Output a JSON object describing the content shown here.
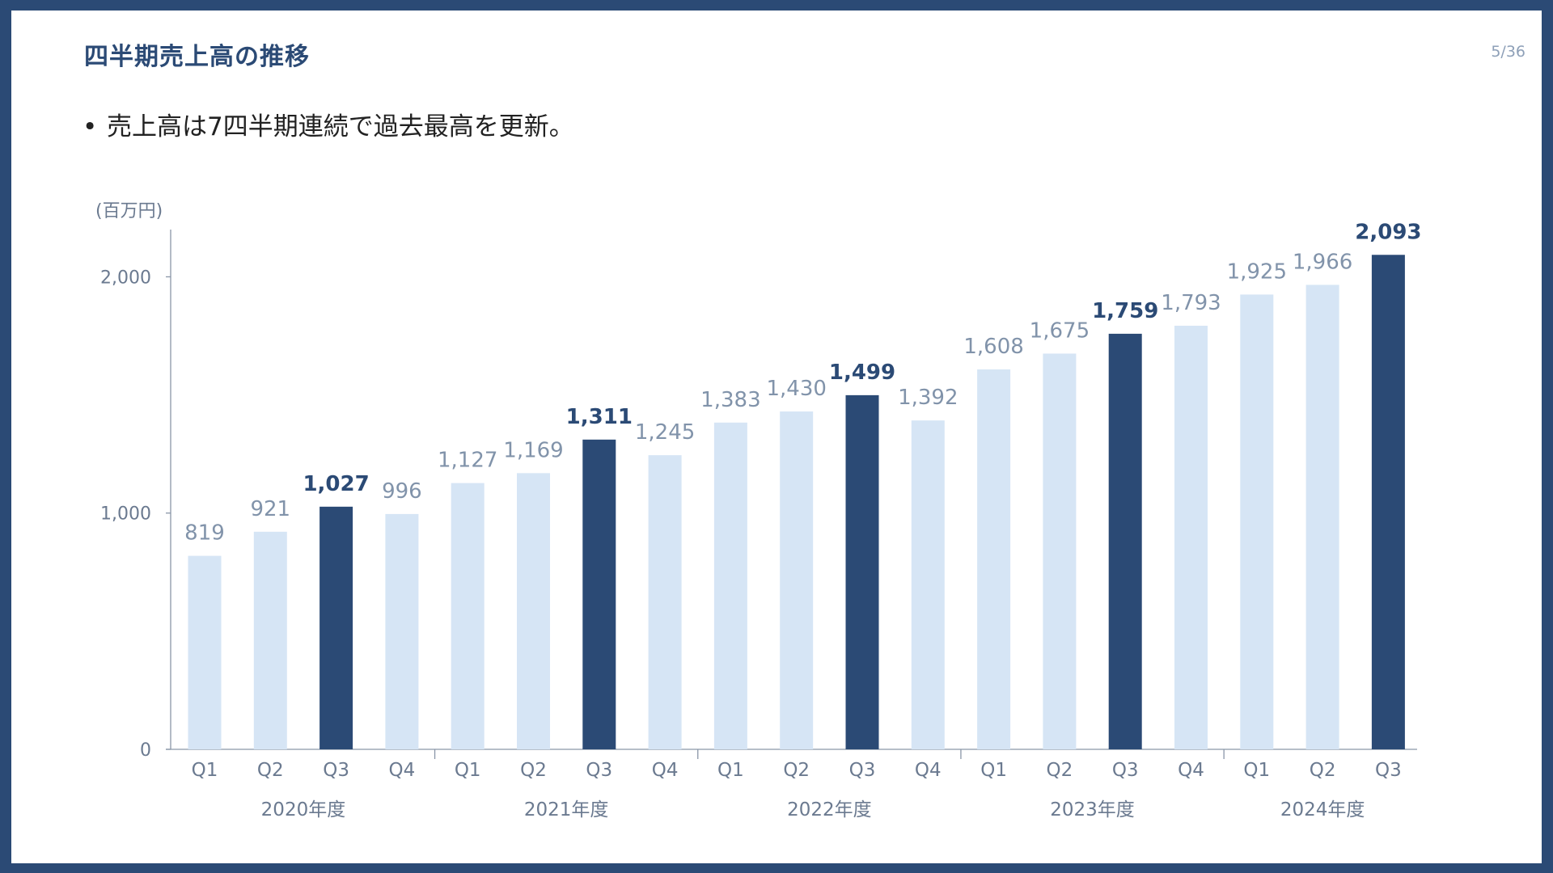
{
  "page": {
    "title": "四半期売上高の推移",
    "page_number": "5/36"
  },
  "bullet": "売上高は7四半期連続で過去最高を更新。",
  "unit_label": "(百万円)",
  "colors": {
    "highlight": "#2b4a75",
    "normal": "#d6e5f5",
    "axis": "#8a96a8"
  },
  "chart_data": {
    "type": "bar",
    "title": "",
    "ylim": [
      0,
      2200
    ],
    "yticks": [
      0,
      1000,
      2000
    ],
    "ytick_labels": [
      "0",
      "1,000",
      "2,000"
    ],
    "categories": [
      "Q1",
      "Q2",
      "Q3",
      "Q4",
      "Q1",
      "Q2",
      "Q3",
      "Q4",
      "Q1",
      "Q2",
      "Q3",
      "Q4",
      "Q1",
      "Q2",
      "Q3",
      "Q4",
      "Q1",
      "Q2",
      "Q3"
    ],
    "values": [
      819,
      921,
      1027,
      996,
      1127,
      1169,
      1311,
      1245,
      1383,
      1430,
      1499,
      1392,
      1608,
      1675,
      1759,
      1793,
      1925,
      1966,
      2093
    ],
    "value_labels": [
      "819",
      "921",
      "1,027",
      "996",
      "1,127",
      "1,169",
      "1,311",
      "1,245",
      "1,383",
      "1,430",
      "1,499",
      "1,392",
      "1,608",
      "1,675",
      "1,759",
      "1,793",
      "1,925",
      "1,966",
      "2,093"
    ],
    "highlighted": [
      false,
      false,
      true,
      false,
      false,
      false,
      true,
      false,
      false,
      false,
      true,
      false,
      false,
      false,
      true,
      false,
      false,
      false,
      true
    ],
    "groups": [
      {
        "label": "2020年度",
        "count": 4
      },
      {
        "label": "2021年度",
        "count": 4
      },
      {
        "label": "2022年度",
        "count": 4
      },
      {
        "label": "2023年度",
        "count": 4
      },
      {
        "label": "2024年度",
        "count": 3
      }
    ],
    "grid": false,
    "legend": "none"
  }
}
